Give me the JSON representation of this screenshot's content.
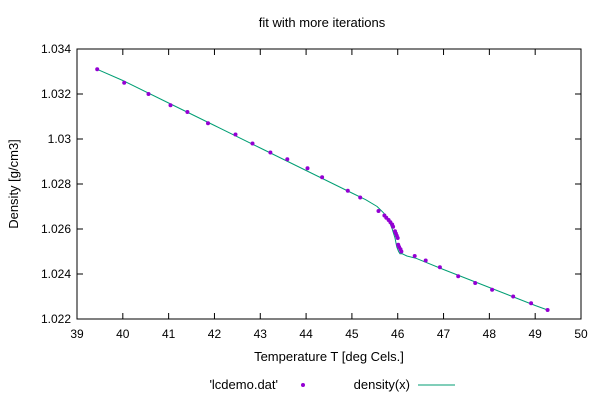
{
  "chart_data": {
    "type": "scatter",
    "title": "fit with more iterations",
    "xlabel": "Temperature T  [deg Cels.]",
    "ylabel": "Density [g/cm3]",
    "xlim": [
      39,
      50
    ],
    "ylim": [
      1.022,
      1.034
    ],
    "xticks": [
      "39",
      "40",
      "41",
      "42",
      "43",
      "44",
      "45",
      "46",
      "47",
      "48",
      "49",
      "50"
    ],
    "yticks": [
      "1.022",
      "1.024",
      "1.026",
      "1.028",
      "1.03",
      "1.032",
      "1.034"
    ],
    "grid": false,
    "legend_position": "bottom-center",
    "series": [
      {
        "name": "'lcdemo.dat'",
        "kind": "points",
        "color": "#9400d3",
        "x": [
          39.44,
          40.03,
          40.56,
          41.04,
          41.41,
          41.86,
          42.46,
          42.83,
          43.22,
          43.59,
          44.03,
          44.35,
          44.91,
          45.18,
          45.58,
          45.71,
          45.75,
          45.8,
          45.84,
          45.88,
          45.9,
          45.94,
          45.96,
          45.98,
          46.0,
          46.01,
          46.03,
          46.06,
          46.08,
          46.37,
          46.61,
          46.92,
          47.32,
          47.69,
          48.06,
          48.52,
          48.91,
          49.27
        ],
        "y": [
          1.0331,
          1.0325,
          1.032,
          1.0315,
          1.0312,
          1.0307,
          1.0302,
          1.0298,
          1.0294,
          1.0291,
          1.0287,
          1.0283,
          1.0277,
          1.0274,
          1.0268,
          1.0266,
          1.0265,
          1.0264,
          1.0263,
          1.0262,
          1.0261,
          1.0259,
          1.0258,
          1.0257,
          1.0256,
          1.0253,
          1.0252,
          1.0251,
          1.025,
          1.0248,
          1.0246,
          1.0243,
          1.0239,
          1.0236,
          1.0233,
          1.023,
          1.0227,
          1.0224
        ]
      },
      {
        "name": "density(x)",
        "kind": "line",
        "color": "#009e73",
        "x": [
          39.44,
          40.0,
          41.0,
          42.0,
          43.0,
          44.0,
          45.0,
          45.3,
          45.55,
          45.7,
          45.8,
          45.88,
          45.94,
          45.98,
          46.0,
          46.02,
          46.05,
          46.1,
          46.2,
          46.4,
          47.0,
          48.0,
          49.0,
          49.27
        ],
        "y": [
          1.0331,
          1.0326,
          1.0316,
          1.0306,
          1.0296,
          1.0286,
          1.0276,
          1.0273,
          1.027,
          1.0267,
          1.0264,
          1.026,
          1.0256,
          1.0252,
          1.0251,
          1.025,
          1.0249,
          1.0249,
          1.0248,
          1.0247,
          1.0242,
          1.0234,
          1.0226,
          1.0224
        ]
      }
    ]
  }
}
